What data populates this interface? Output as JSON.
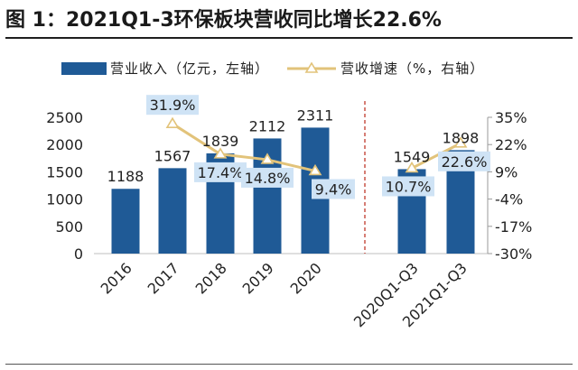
{
  "title": "图 1：2021Q1-3环保板块营收同比增长22.6%",
  "colors": {
    "bar": "#1f5a96",
    "line": "#e2c37a",
    "line_label_box": "#cfe3f5",
    "line_label_text": "#1b3a5c",
    "divider": "#c0392b",
    "rule": "#1f1f1f"
  },
  "chart_data": {
    "type": "bar",
    "categories": [
      "2016",
      "2017",
      "2018",
      "2019",
      "2020",
      "",
      "2020Q1-Q3",
      "2021Q1-Q3"
    ],
    "series": [
      {
        "name": "营业收入（亿元，左轴）",
        "type": "bar",
        "axis": "left",
        "values": [
          1188,
          1567,
          1839,
          2112,
          2311,
          null,
          1549,
          1898
        ],
        "labels": [
          "1188",
          "1567",
          "1839",
          "2112",
          "2311",
          "",
          "1549",
          "1898"
        ]
      },
      {
        "name": "营收增速（%，右轴）",
        "type": "line",
        "axis": "right",
        "values": [
          null,
          31.9,
          17.4,
          14.8,
          9.4,
          null,
          10.7,
          22.6
        ],
        "labels": [
          "",
          "31.9%",
          "17.4%",
          "14.8%",
          "9.4%",
          "",
          "10.7%",
          "22.6%"
        ]
      }
    ],
    "y_left": {
      "lim": [
        0,
        2500
      ],
      "ticks": [
        "0",
        "500",
        "1000",
        "1500",
        "2000",
        "2500"
      ]
    },
    "y_right": {
      "lim": [
        -30,
        35
      ],
      "ticks": [
        "-30%",
        "-17%",
        "-4%",
        "9%",
        "22%",
        "35%"
      ]
    },
    "legend": {
      "placement": "top"
    },
    "grid": false,
    "divider_between": [
      "2020",
      "2020Q1-Q3"
    ]
  }
}
